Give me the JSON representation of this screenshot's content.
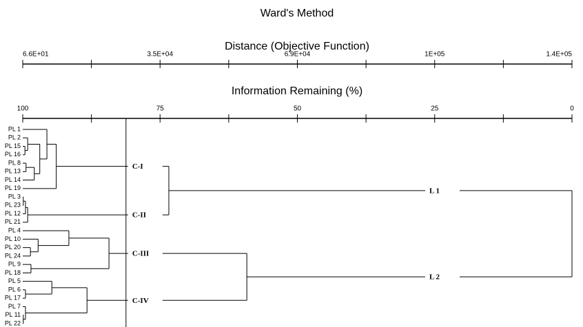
{
  "chart_data": {
    "type": "dendrogram",
    "title": "Ward's Method",
    "distance_axis_label": "Distance (Objective Function)",
    "distance_ticks": [
      {
        "value": 100,
        "label": "6.6E+01"
      },
      {
        "value": 75,
        "label": "3.5E+04"
      },
      {
        "value": 50,
        "label": "6.9E+04"
      },
      {
        "value": 25,
        "label": "1E+05"
      },
      {
        "value": 0,
        "label": "1.4E+05"
      }
    ],
    "xlabel": "Information Remaining (%)",
    "xlim": [
      100,
      0
    ],
    "xticks": [
      100,
      75,
      50,
      25,
      0
    ],
    "minor_xticks": [
      87.5,
      62.5,
      37.5,
      12.5
    ],
    "cut": 81.2,
    "tree": {
      "height": 0,
      "children": [
        {
          "label": "L 1",
          "height": 73.4,
          "children": [
            {
              "label": "C-I",
              "height": 93.9,
              "children": [
                {
                  "height": 95.6,
                  "children": [
                    {
                      "leaf": "PL 1"
                    },
                    {
                      "height": 96.9,
                      "children": [
                        {
                          "height": 99.1,
                          "children": [
                            {
                              "leaf": "PL 2"
                            },
                            {
                              "height": 99.6,
                              "children": [
                                {
                                  "leaf": "PL 15"
                                },
                                {
                                  "leaf": "PL 16"
                                }
                              ]
                            }
                          ]
                        },
                        {
                          "height": 97.9,
                          "children": [
                            {
                              "height": 99.4,
                              "children": [
                                {
                                  "leaf": "PL 8"
                                },
                                {
                                  "leaf": "PL 13"
                                }
                              ]
                            },
                            {
                              "leaf": "PL 14"
                            }
                          ]
                        }
                      ]
                    }
                  ]
                },
                {
                  "leaf": "PL 19"
                }
              ]
            },
            {
              "label": "C-II",
              "height": 99.1,
              "children": [
                {
                  "height": 99.5,
                  "children": [
                    {
                      "height": 99.9,
                      "children": [
                        {
                          "leaf": "PL 3"
                        },
                        {
                          "leaf": "PL 23"
                        }
                      ]
                    },
                    {
                      "leaf": "PL 12"
                    }
                  ]
                },
                {
                  "leaf": "PL 21"
                }
              ]
            }
          ]
        },
        {
          "label": "L 2",
          "height": 59.2,
          "children": [
            {
              "label": "C-III",
              "height": 84.3,
              "children": [
                {
                  "height": 91.6,
                  "children": [
                    {
                      "leaf": "PL 4"
                    },
                    {
                      "height": 97.2,
                      "children": [
                        {
                          "leaf": "PL 10"
                        },
                        {
                          "height": 98.6,
                          "children": [
                            {
                              "leaf": "PL 20"
                            },
                            {
                              "leaf": "PL 24"
                            }
                          ]
                        }
                      ]
                    }
                  ]
                },
                {
                  "height": 98.5,
                  "children": [
                    {
                      "leaf": "PL 9"
                    },
                    {
                      "leaf": "PL 18"
                    }
                  ]
                }
              ]
            },
            {
              "label": "C-IV",
              "height": 88.3,
              "children": [
                {
                  "height": 94.7,
                  "children": [
                    {
                      "leaf": "PL 5"
                    },
                    {
                      "height": 99.5,
                      "children": [
                        {
                          "leaf": "PL 6"
                        },
                        {
                          "leaf": "PL 17"
                        }
                      ]
                    }
                  ]
                },
                {
                  "height": 99.5,
                  "children": [
                    {
                      "leaf": "PL 7"
                    },
                    {
                      "height": 99.9,
                      "children": [
                        {
                          "leaf": "PL 11"
                        },
                        {
                          "leaf": "PL 22"
                        }
                      ]
                    }
                  ]
                }
              ]
            }
          ]
        }
      ]
    }
  }
}
